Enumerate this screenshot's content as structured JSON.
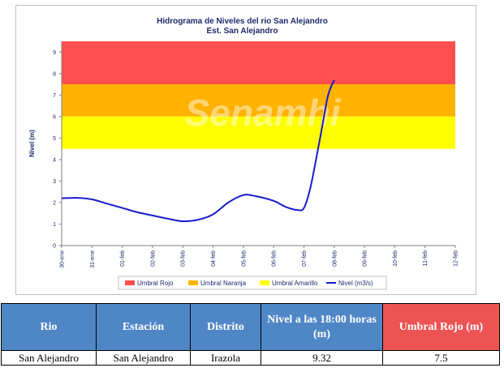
{
  "chart_data": {
    "type": "line",
    "title": "Hidrograma de Niveles del rio San Alejandro",
    "subtitle": "Est. San Alejandro",
    "ylabel": "Nivel (m)",
    "xlabel": "",
    "ylim": [
      0,
      9.5
    ],
    "yticks": [
      0,
      1,
      2,
      3,
      4,
      5,
      6,
      7,
      8,
      9
    ],
    "x_categories": [
      "30-ene",
      "31-ene",
      "01-feb",
      "02-feb",
      "03-feb",
      "04-feb",
      "05-feb",
      "06-feb",
      "07-feb",
      "08-feb",
      "09-feb",
      "10-feb",
      "11-feb",
      "12-feb"
    ],
    "bands": [
      {
        "name": "Umbral Rojo",
        "from": 7.5,
        "to": 9.5,
        "color": "#ff4f4f"
      },
      {
        "name": "Umbral Naranja",
        "from": 6.0,
        "to": 7.5,
        "color": "#ffb300"
      },
      {
        "name": "Umbral Amarillo",
        "from": 4.5,
        "to": 6.0,
        "color": "#ffff00"
      }
    ],
    "series": [
      {
        "name": "Nivel (m3/s)",
        "color": "#1a1acd",
        "x": [
          0,
          0.5,
          1,
          1.5,
          2,
          2.5,
          3,
          3.5,
          4,
          4.5,
          5,
          5.5,
          6,
          6.4,
          7,
          7.4,
          7.8,
          8,
          8.2,
          8.4,
          8.6,
          8.8,
          9
        ],
        "y": [
          2.2,
          2.22,
          2.15,
          1.95,
          1.75,
          1.55,
          1.4,
          1.25,
          1.13,
          1.2,
          1.45,
          2.0,
          2.35,
          2.3,
          2.08,
          1.8,
          1.65,
          1.75,
          2.6,
          4.0,
          5.5,
          7.0,
          7.7
        ]
      }
    ],
    "legend_position": "bottom",
    "grid": false
  },
  "watermark": "Senamhi",
  "table": {
    "headers": [
      "Rio",
      "Estación",
      "Distrito",
      "Nivel a las 18:00 horas (m)",
      "Umbral Rojo (m)"
    ],
    "rows": [
      [
        "San Alejandro",
        "San Alejandro",
        "Irazola",
        "9.32",
        "7.5"
      ]
    ]
  }
}
